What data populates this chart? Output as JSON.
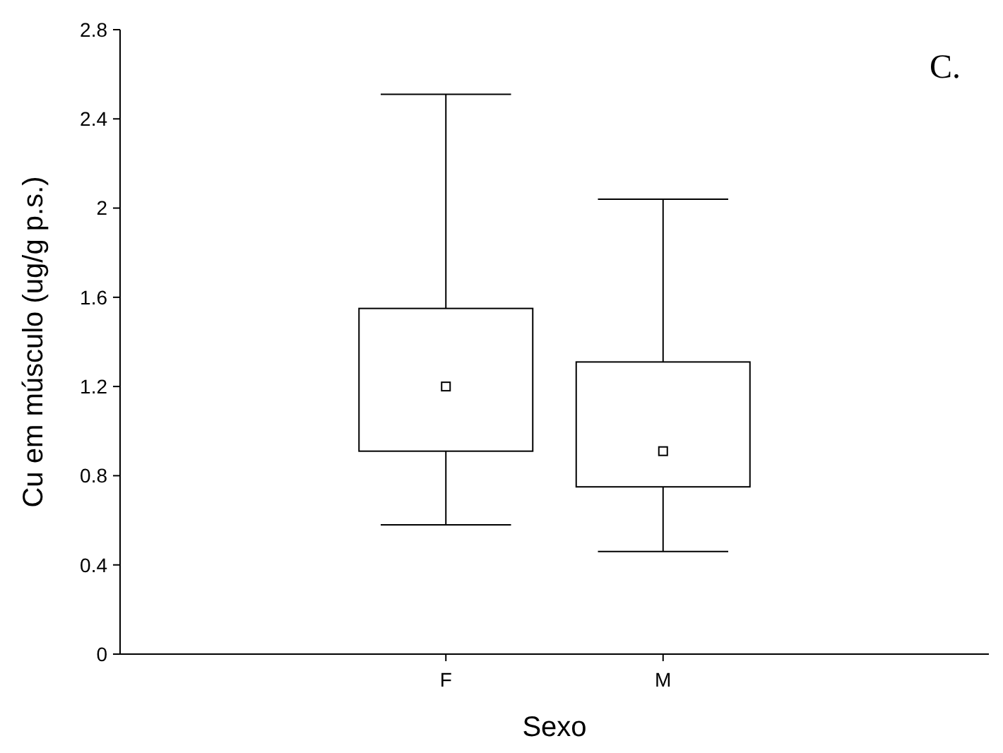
{
  "chart_data": {
    "type": "box",
    "xlabel": "Sexo",
    "ylabel": "Cu em músculo (ug/g p.s.)",
    "annotations": [
      "C."
    ],
    "categories": [
      "F",
      "M"
    ],
    "boxes": [
      {
        "low": 0.58,
        "q1": 0.91,
        "median": 1.2,
        "q3": 1.55,
        "high": 2.51
      },
      {
        "low": 0.46,
        "q1": 0.75,
        "median": 0.91,
        "q3": 1.31,
        "high": 2.04
      }
    ],
    "ylim": [
      0,
      2.8
    ],
    "yticks": [
      {
        "value": 0,
        "label": "0"
      },
      {
        "value": 0.4,
        "label": "0.4"
      },
      {
        "value": 0.8,
        "label": "0.8"
      },
      {
        "value": 1.2,
        "label": "1.2"
      },
      {
        "value": 1.6,
        "label": "1.6"
      },
      {
        "value": 2,
        "label": "2"
      },
      {
        "value": 2.4,
        "label": "2.4"
      },
      {
        "value": 2.8,
        "label": "2.8"
      }
    ],
    "grid": false,
    "marker": "square"
  }
}
